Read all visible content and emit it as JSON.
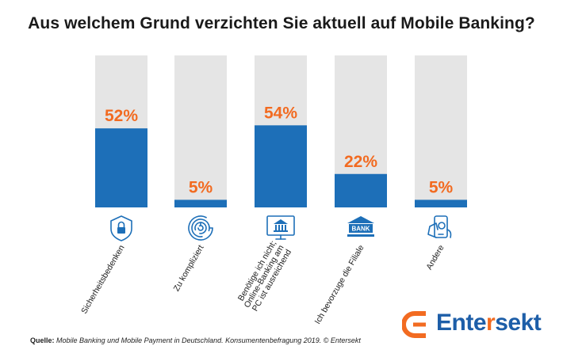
{
  "title": "Aus welchem Grund verzichten Sie aktuell auf Mobile Banking?",
  "chart_data": {
    "type": "bar",
    "categories": [
      "Sicherheitsbedenken",
      "Zu kompliziert",
      "Benötige ich nicht; Online-Banking am PC ist ausreichend",
      "Ich bevorzuge die Filiale",
      "Andere"
    ],
    "category_lines": [
      [
        "Sicherheitsbedenken"
      ],
      [
        "Zu kompliziert"
      ],
      [
        "Benötige ich nicht;",
        "Online-Banking am",
        "PC ist ausreichend"
      ],
      [
        "Ich bevorzuge die Filiale"
      ],
      [
        "Andere"
      ]
    ],
    "values": [
      52,
      5,
      54,
      22,
      5
    ],
    "value_labels": [
      "52%",
      "5%",
      "54%",
      "22%",
      "5%"
    ],
    "unit": "%",
    "ylim": [
      0,
      100
    ],
    "icons": [
      "shield-lock-icon",
      "maze-icon",
      "computer-bank-icon",
      "bank-building-icon",
      "phone-money-icon"
    ],
    "bank_icon_text": "BANK",
    "colors": {
      "bar": "#1d6fb8",
      "background_bar": "#e5e5e5",
      "label": "#f26b21",
      "icon": "#1d6fb8"
    }
  },
  "source": {
    "label": "Quelle:",
    "text": "Mobile Banking und Mobile Payment in Deutschland. Konsumentenbefragung 2019. © Entersekt"
  },
  "logo": {
    "text_main": "Ente",
    "text_accent": "r",
    "text_end": "sekt"
  }
}
